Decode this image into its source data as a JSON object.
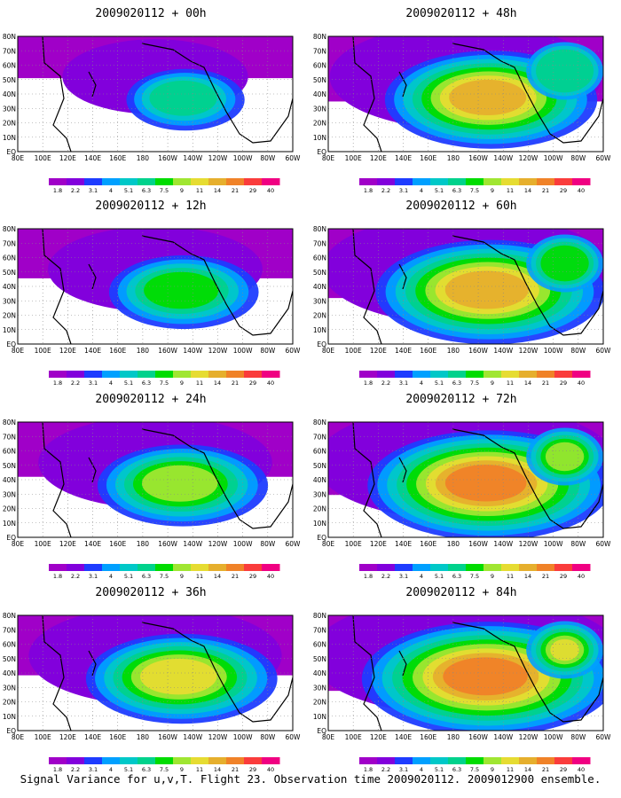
{
  "panels": [
    {
      "title": "2009020112 + 00h",
      "lead_hours": 0,
      "level": 0.25
    },
    {
      "title": "2009020112 + 48h",
      "lead_hours": 48,
      "level": 0.7
    },
    {
      "title": "2009020112 + 12h",
      "lead_hours": 12,
      "level": 0.4
    },
    {
      "title": "2009020112 + 60h",
      "lead_hours": 60,
      "level": 0.78
    },
    {
      "title": "2009020112 + 24h",
      "lead_hours": 24,
      "level": 0.5
    },
    {
      "title": "2009020112 + 72h",
      "lead_hours": 72,
      "level": 0.85
    },
    {
      "title": "2009020112 + 36h",
      "lead_hours": 36,
      "level": 0.6
    },
    {
      "title": "2009020112 + 84h",
      "lead_hours": 84,
      "level": 0.9
    }
  ],
  "lat_labels": [
    "80N",
    "70N",
    "60N",
    "50N",
    "40N",
    "30N",
    "20N",
    "10N",
    "EQ"
  ],
  "lon_labels": [
    "80E",
    "100E",
    "120E",
    "140E",
    "160E",
    "180",
    "160W",
    "140W",
    "120W",
    "100W",
    "80W",
    "60W"
  ],
  "colorbar": {
    "labels": [
      "1.8",
      "2.2",
      "3.1",
      "4",
      "5.1",
      "6.3",
      "7.5",
      "9",
      "11",
      "14",
      "21",
      "29",
      "40"
    ],
    "colors": [
      "#a000c8",
      "#8200dc",
      "#1e3cff",
      "#00a0ff",
      "#00c8c8",
      "#00d28c",
      "#00dc00",
      "#a0e632",
      "#e6dc32",
      "#e6af2d",
      "#f08228",
      "#fa3c3c",
      "#f00082"
    ]
  },
  "footer": "Signal Variance for u,v,T. Flight 23. Observation time 2009020112. 2009012900 ensemble."
}
